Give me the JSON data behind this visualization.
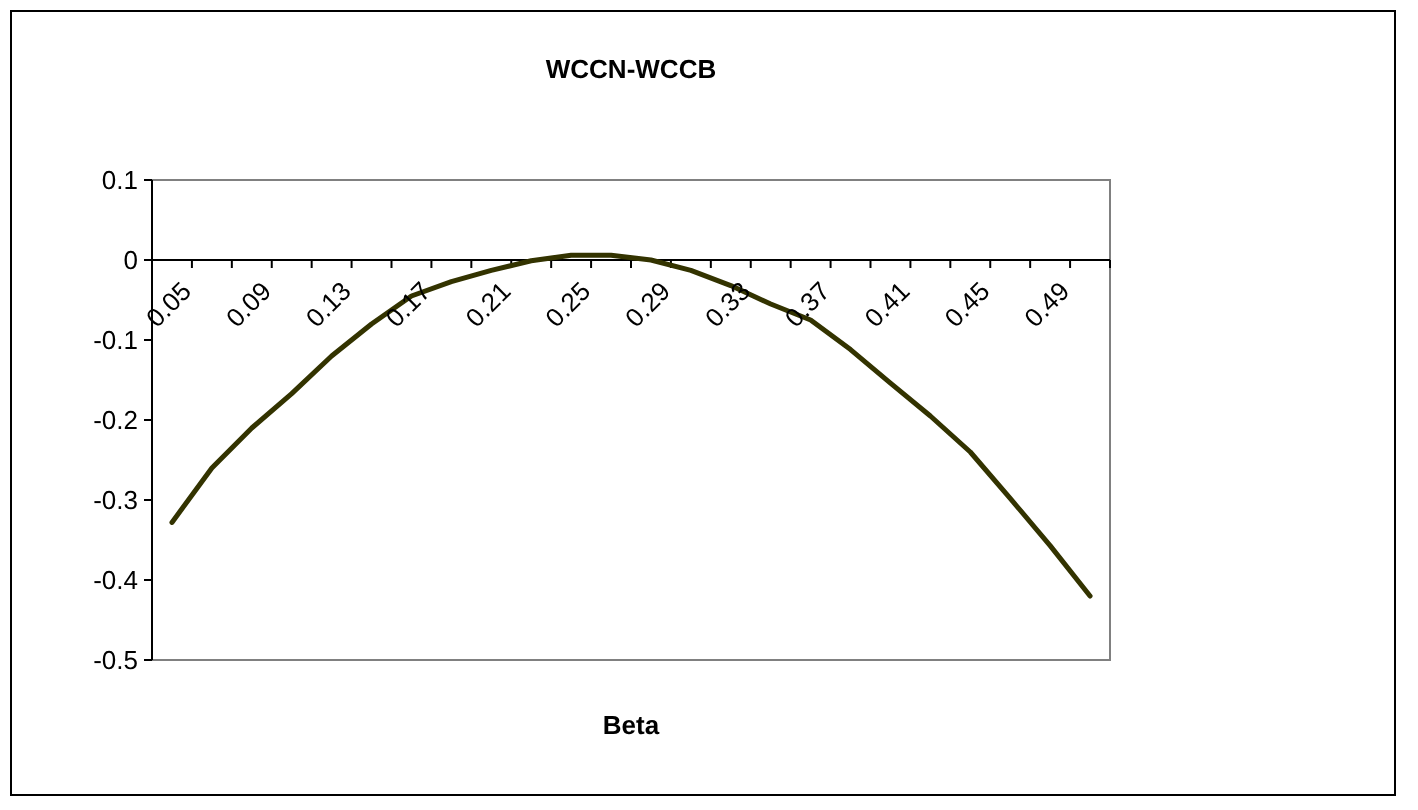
{
  "chart_data": {
    "type": "line",
    "title": "WCCN-WCCB",
    "xlabel": "Beta",
    "categories": [
      "0.05",
      null,
      "0.09",
      null,
      "0.13",
      null,
      "0.17",
      null,
      "0.21",
      null,
      "0.25",
      null,
      "0.29",
      null,
      "0.33",
      null,
      "0.37",
      null,
      "0.41",
      null,
      "0.45",
      null,
      "0.49",
      null
    ],
    "series": [
      {
        "color": "#333300",
        "values": [
          -0.328,
          -0.26,
          -0.21,
          -0.167,
          -0.12,
          -0.08,
          -0.045,
          -0.027,
          -0.013,
          -0.001,
          0.006,
          0.006,
          0,
          -0.013,
          -0.032,
          -0.055,
          -0.075,
          -0.112,
          -0.154,
          -0.195,
          -0.24,
          -0.298,
          -0.357,
          -0.42
        ]
      }
    ],
    "ylim": [
      -0.5,
      0.1
    ],
    "yticks": [
      -0.5,
      -0.4,
      -0.3,
      -0.2,
      -0.1,
      0,
      0.1
    ],
    "grid": false,
    "marker": "none",
    "line_style": "solid"
  }
}
